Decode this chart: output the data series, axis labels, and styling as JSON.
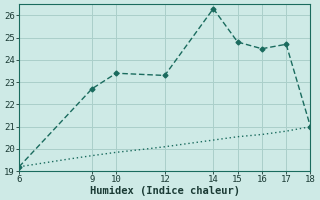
{
  "title": "",
  "xlabel": "Humidex (Indice chaleur)",
  "bg_color": "#ceeae6",
  "line_color": "#1a6b5e",
  "grid_color": "#aacfca",
  "line1_x": [
    6,
    9,
    10,
    12,
    14,
    15,
    16,
    17,
    18
  ],
  "line1_y": [
    19.2,
    22.7,
    23.4,
    23.3,
    26.3,
    24.8,
    24.5,
    24.7,
    21.0
  ],
  "line2_x": [
    6,
    7,
    8,
    9,
    10,
    11,
    12,
    13,
    14,
    15,
    16,
    17,
    18
  ],
  "line2_y": [
    19.2,
    19.37,
    19.54,
    19.7,
    19.85,
    19.97,
    20.1,
    20.25,
    20.4,
    20.55,
    20.65,
    20.8,
    21.0
  ],
  "xlim": [
    6,
    18
  ],
  "ylim": [
    19,
    26.5
  ],
  "xticks": [
    6,
    9,
    10,
    12,
    14,
    15,
    16,
    17,
    18
  ],
  "yticks": [
    19,
    20,
    21,
    22,
    23,
    24,
    25,
    26
  ],
  "marker": "D",
  "markersize": 2.5,
  "linewidth": 1.0,
  "font_color": "#1a3a34",
  "axis_label_fontsize": 7.5,
  "tick_fontsize": 6.5
}
